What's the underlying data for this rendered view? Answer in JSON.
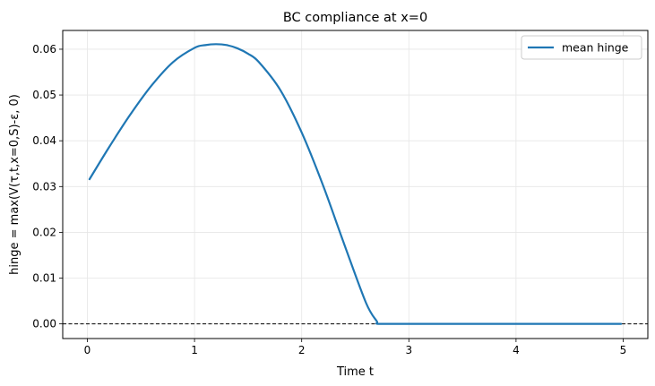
{
  "chart_data": {
    "type": "line",
    "title": "BC compliance at x=0",
    "xlabel": "Time t",
    "ylabel": "hinge = max(V(τ,t,x=0,S)-ε, 0)",
    "xlim": [
      -0.23,
      5.23
    ],
    "ylim": [
      -0.0032,
      0.0641
    ],
    "xticks": [
      0,
      1,
      2,
      3,
      4,
      5
    ],
    "xtick_labels": [
      "0",
      "1",
      "2",
      "3",
      "4",
      "5"
    ],
    "yticks": [
      0.0,
      0.01,
      0.02,
      0.03,
      0.04,
      0.05,
      0.06
    ],
    "ytick_labels": [
      "0.00",
      "0.01",
      "0.02",
      "0.03",
      "0.04",
      "0.05",
      "0.06"
    ],
    "grid": true,
    "legend_position": "top-right",
    "reference_line": {
      "y": 0,
      "style": "dashed",
      "color": "#000000"
    },
    "series": [
      {
        "name": "mean hinge",
        "color": "#1f77b4",
        "x": [
          0.02,
          0.2,
          0.4,
          0.6,
          0.8,
          1.0,
          1.1,
          1.2,
          1.3,
          1.4,
          1.5,
          1.6,
          1.8,
          2.0,
          2.2,
          2.4,
          2.6,
          2.7,
          2.72,
          3.0,
          3.5,
          4.0,
          4.5,
          4.98
        ],
        "y": [
          0.0316,
          0.0385,
          0.0457,
          0.0521,
          0.0572,
          0.0603,
          0.0609,
          0.0611,
          0.0609,
          0.0602,
          0.059,
          0.0572,
          0.0511,
          0.0418,
          0.0302,
          0.0172,
          0.0046,
          0.0006,
          0.0,
          0.0,
          0.0,
          0.0,
          0.0,
          0.0
        ]
      }
    ]
  }
}
